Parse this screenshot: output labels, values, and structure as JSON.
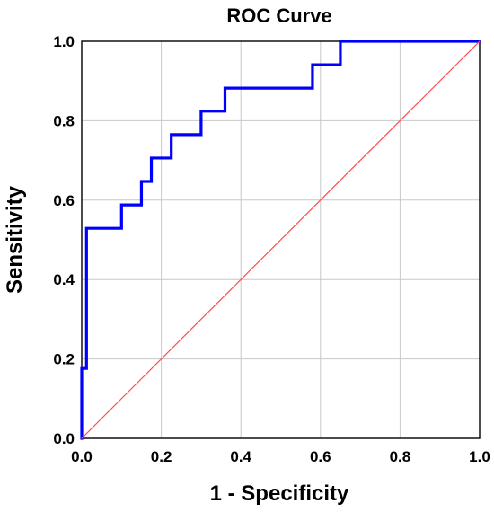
{
  "chart_data": {
    "type": "line",
    "title": "ROC Curve",
    "xlabel": "1 - Specificity",
    "ylabel": "Sensitivity",
    "xlim": [
      0.0,
      1.0
    ],
    "ylim": [
      0.0,
      1.0
    ],
    "x_ticks": [
      "0.0",
      "0.2",
      "0.4",
      "0.6",
      "0.8",
      "1.0"
    ],
    "y_ticks": [
      "0.0",
      "0.2",
      "0.4",
      "0.6",
      "0.8",
      "1.0"
    ],
    "grid": true,
    "legend": "none",
    "series": [
      {
        "color": "#0000ff",
        "style": "step",
        "points": [
          [
            0.0,
            0.0
          ],
          [
            0.0,
            0.176
          ],
          [
            0.012,
            0.176
          ],
          [
            0.012,
            0.529
          ],
          [
            0.1,
            0.529
          ],
          [
            0.1,
            0.588
          ],
          [
            0.15,
            0.588
          ],
          [
            0.15,
            0.647
          ],
          [
            0.175,
            0.647
          ],
          [
            0.175,
            0.706
          ],
          [
            0.225,
            0.706
          ],
          [
            0.225,
            0.765
          ],
          [
            0.3,
            0.765
          ],
          [
            0.3,
            0.824
          ],
          [
            0.36,
            0.824
          ],
          [
            0.36,
            0.882
          ],
          [
            0.58,
            0.882
          ],
          [
            0.58,
            0.941
          ],
          [
            0.65,
            0.941
          ],
          [
            0.65,
            1.0
          ],
          [
            1.0,
            1.0
          ]
        ]
      },
      {
        "color": "#ff4d4d",
        "style": "reference",
        "points": [
          [
            0.0,
            0.0
          ],
          [
            1.0,
            1.0
          ]
        ]
      }
    ]
  }
}
